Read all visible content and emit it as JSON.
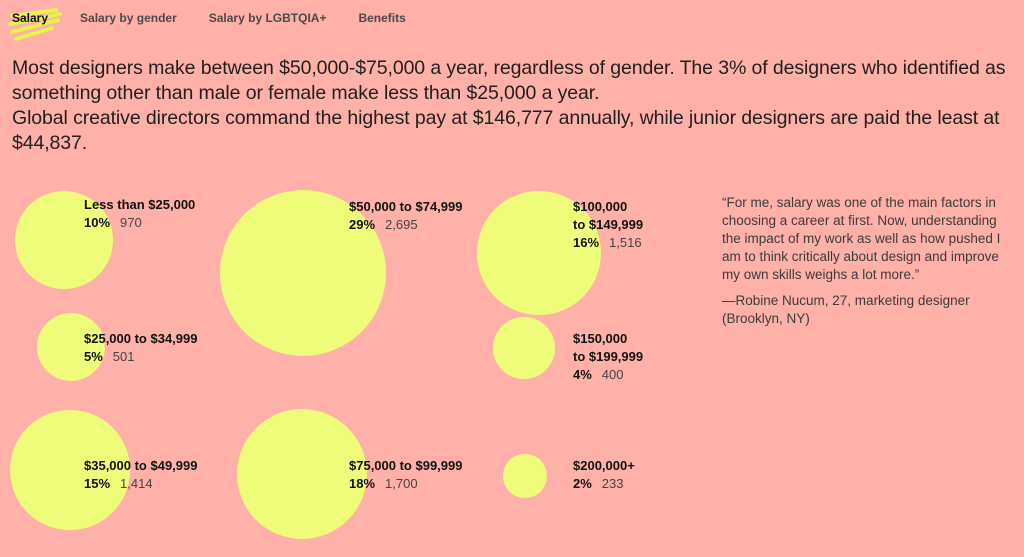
{
  "tabs": [
    {
      "label": "Salary",
      "active": true
    },
    {
      "label": "Salary by gender",
      "active": false
    },
    {
      "label": "Salary by LGBTQIA+",
      "active": false
    },
    {
      "label": "Benefits",
      "active": false
    }
  ],
  "intro": {
    "line1": "Most designers make between $50,000-$75,000 a year, regardless of gender. The 3% of designers who identified as something other than male or female make less than $25,000 a year.",
    "line2": "Global creative directors command the highest pay at $146,777 annually, while junior designers are paid the least at $44,837."
  },
  "quote": {
    "text": "“For me, salary was one of the main factors in choosing a career at first. Now, understanding the impact of my work as well as how pushed I am to think critically about design and improve my own skills weighs a lot more.”",
    "attribution": "—Robine Nucum, 27, marketing designer (Brooklyn, NY)"
  },
  "colors": {
    "background": "#ffb0a8",
    "bubble": "#eefc7a",
    "scribble": "#e8f44a"
  },
  "chart_data": {
    "type": "bubble",
    "title": "",
    "series": [
      {
        "range": "Less than $25,000",
        "percent": "10%",
        "percent_value": 10,
        "count": 970
      },
      {
        "range": "$25,000 to $34,999",
        "percent": "5%",
        "percent_value": 5,
        "count": 501
      },
      {
        "range": "$35,000 to $49,999",
        "percent": "15%",
        "percent_value": 15,
        "count": 1414
      },
      {
        "range": "$50,000 to $74,999",
        "percent": "29%",
        "percent_value": 29,
        "count": 2695
      },
      {
        "range": "$75,000 to $99,999",
        "percent": "18%",
        "percent_value": 18,
        "count": 1700
      },
      {
        "range": "$100,000\nto $149,999",
        "percent": "16%",
        "percent_value": 16,
        "count": 1516
      },
      {
        "range": "$150,000\nto $199,999",
        "percent": "4%",
        "percent_value": 4,
        "count": 400
      },
      {
        "range": "$200,000+",
        "percent": "2%",
        "percent_value": 2,
        "count": 233
      }
    ]
  }
}
